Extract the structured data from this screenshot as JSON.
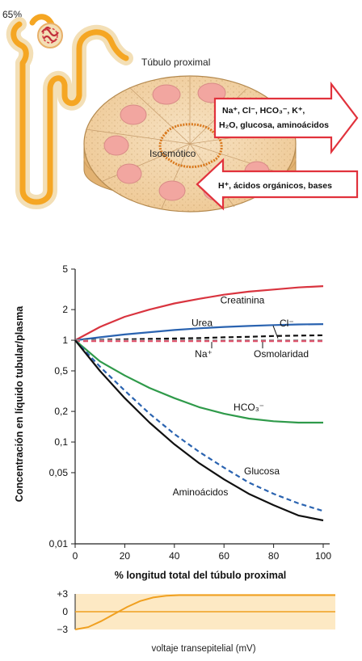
{
  "nephron": {
    "percent_label": "65%"
  },
  "tubule": {
    "title": "Túbulo proximal",
    "center_label": "Isosmótico",
    "reabsorption_line1": "Na⁺, Cl⁻, HCO₃⁻, K⁺,",
    "reabsorption_line2": "H₂O, glucosa, aminoácidos",
    "secretion_label": "H⁺, ácidos orgánicos, bases"
  },
  "chart_data": {
    "type": "line",
    "xlabel": "% longitud total del túbulo proximal",
    "ylabel": "Concentración en líquido tubular/plasma",
    "x_ticks": [
      "0",
      "20",
      "40",
      "60",
      "80",
      "100"
    ],
    "y_ticks": [
      "5",
      "2",
      "1",
      "0,5",
      "0,2",
      "0,1",
      "0,05",
      "0,01"
    ],
    "y_tick_values": [
      5,
      2,
      1,
      0.5,
      0.2,
      0.1,
      0.05,
      0.01
    ],
    "xlim": [
      0,
      100
    ],
    "ylim": [
      0.01,
      5
    ],
    "y_scale": "log",
    "x": [
      0,
      10,
      20,
      30,
      40,
      50,
      60,
      70,
      80,
      90,
      100
    ],
    "series": [
      {
        "name": "Creatinina",
        "color": "#d9343f",
        "dash": "solid",
        "values": [
          1.0,
          1.35,
          1.7,
          2.0,
          2.3,
          2.55,
          2.8,
          3.0,
          3.15,
          3.3,
          3.4
        ]
      },
      {
        "name": "Urea",
        "color": "#2a63b0",
        "dash": "solid",
        "values": [
          1.0,
          1.07,
          1.14,
          1.2,
          1.26,
          1.31,
          1.35,
          1.38,
          1.41,
          1.43,
          1.44
        ]
      },
      {
        "name": "Cl⁻",
        "color": "#111111",
        "dash": "dashed",
        "values": [
          1.0,
          1.01,
          1.02,
          1.03,
          1.04,
          1.05,
          1.07,
          1.08,
          1.1,
          1.11,
          1.12
        ]
      },
      {
        "name": "Osmolaridad",
        "color": "#9a9a9a",
        "dash": "dashed",
        "values": [
          1.0,
          1.0,
          1.0,
          1.0,
          1.0,
          1.0,
          1.0,
          1.0,
          1.0,
          1.0,
          1.0
        ]
      },
      {
        "name": "Na⁺",
        "color": "#e0506a",
        "dash": "dashed",
        "values": [
          0.98,
          0.98,
          0.98,
          0.98,
          0.98,
          0.98,
          0.98,
          0.98,
          0.98,
          0.98,
          0.98
        ]
      },
      {
        "name": "HCO₃⁻",
        "color": "#2f9a4a",
        "dash": "solid",
        "values": [
          1.0,
          0.62,
          0.45,
          0.34,
          0.27,
          0.22,
          0.19,
          0.17,
          0.16,
          0.155,
          0.155
        ]
      },
      {
        "name": "Glucosa",
        "color": "#2a63b0",
        "dash": "dashed",
        "values": [
          1.0,
          0.55,
          0.32,
          0.19,
          0.12,
          0.08,
          0.056,
          0.04,
          0.031,
          0.025,
          0.021
        ]
      },
      {
        "name": "Aminoácidos",
        "color": "#111111",
        "dash": "solid",
        "values": [
          1.0,
          0.5,
          0.27,
          0.155,
          0.095,
          0.062,
          0.043,
          0.031,
          0.024,
          0.019,
          0.017
        ]
      }
    ]
  },
  "voltage_chart": {
    "type": "line",
    "label": "voltaje transepitelial (mV)",
    "y_ticks": [
      "+3",
      "0",
      "−3"
    ],
    "ylim": [
      -3,
      3
    ],
    "x": [
      0,
      5,
      10,
      15,
      20,
      25,
      30,
      35,
      40,
      50,
      60,
      70,
      80,
      90,
      100
    ],
    "values": [
      -3.0,
      -2.6,
      -1.6,
      -0.4,
      0.8,
      1.8,
      2.4,
      2.7,
      2.8,
      2.8,
      2.8,
      2.8,
      2.8,
      2.8,
      2.8
    ],
    "color": "#f0a020"
  }
}
